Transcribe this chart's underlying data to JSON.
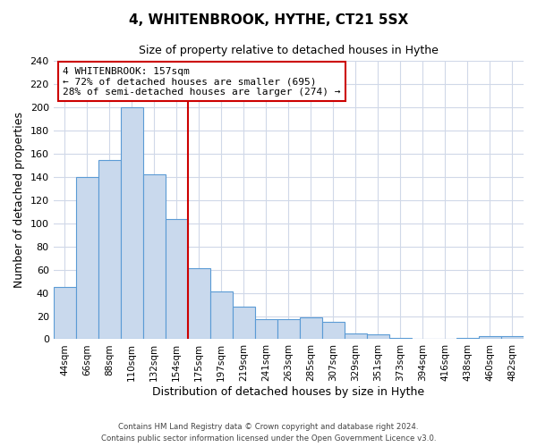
{
  "title": "4, WHITENBROOK, HYTHE, CT21 5SX",
  "subtitle": "Size of property relative to detached houses in Hythe",
  "xlabel": "Distribution of detached houses by size in Hythe",
  "ylabel": "Number of detached properties",
  "bar_labels": [
    "44sqm",
    "66sqm",
    "88sqm",
    "110sqm",
    "132sqm",
    "154sqm",
    "175sqm",
    "197sqm",
    "219sqm",
    "241sqm",
    "263sqm",
    "285sqm",
    "307sqm",
    "329sqm",
    "351sqm",
    "373sqm",
    "394sqm",
    "416sqm",
    "438sqm",
    "460sqm",
    "482sqm"
  ],
  "bar_heights": [
    45,
    140,
    155,
    200,
    142,
    104,
    61,
    41,
    28,
    17,
    17,
    19,
    15,
    5,
    4,
    1,
    0,
    0,
    1,
    3,
    3
  ],
  "bar_color": "#c9d9ed",
  "bar_edge_color": "#5b9bd5",
  "vline_x": 5.5,
  "vline_color": "#cc0000",
  "annotation_title": "4 WHITENBROOK: 157sqm",
  "annotation_line1": "← 72% of detached houses are smaller (695)",
  "annotation_line2": "28% of semi-detached houses are larger (274) →",
  "annotation_box_color": "#ffffff",
  "annotation_box_edge": "#cc0000",
  "ylim": [
    0,
    240
  ],
  "yticks": [
    0,
    20,
    40,
    60,
    80,
    100,
    120,
    140,
    160,
    180,
    200,
    220,
    240
  ],
  "footer1": "Contains HM Land Registry data © Crown copyright and database right 2024.",
  "footer2": "Contains public sector information licensed under the Open Government Licence v3.0.",
  "bg_color": "#ffffff",
  "grid_color": "#d0d8e8"
}
